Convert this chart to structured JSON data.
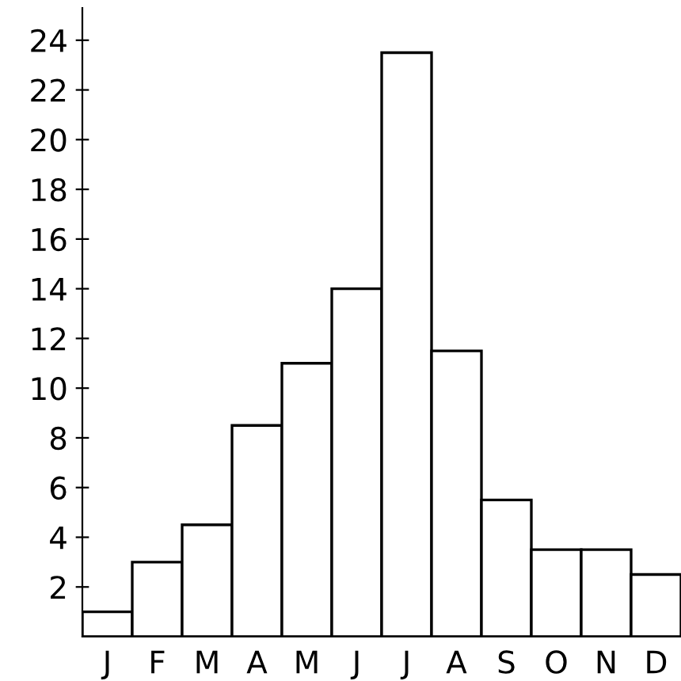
{
  "chart_data": {
    "type": "bar",
    "categories": [
      "J",
      "F",
      "M",
      "A",
      "M",
      "J",
      "J",
      "A",
      "S",
      "O",
      "N",
      "D"
    ],
    "values": [
      1,
      3,
      4.5,
      8.5,
      11,
      14,
      23.5,
      11.5,
      5.5,
      3.5,
      3.5,
      2.5
    ],
    "color": "#ffffff",
    "ylim": [
      0,
      25.3
    ],
    "yticks": [
      2,
      4,
      6,
      8,
      10,
      12,
      14,
      16,
      18,
      20,
      22,
      24
    ],
    "grid": false,
    "legend": false
  }
}
